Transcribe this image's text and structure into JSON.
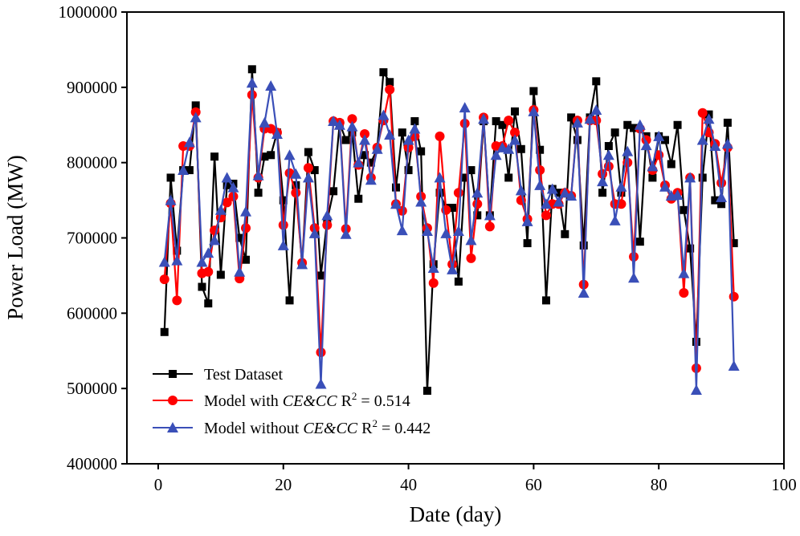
{
  "colors": {
    "test": "#000000",
    "with": "#ff0000",
    "without": "#3a4fb8"
  },
  "chart_data": {
    "type": "line",
    "xlabel": "Date (day)",
    "ylabel": "Power Load (MW)",
    "xlim": [
      -5,
      100
    ],
    "ylim": [
      400000,
      1000000
    ],
    "xticks": [
      0,
      20,
      40,
      60,
      80,
      100
    ],
    "xtick_labels": [
      "0",
      "20",
      "40",
      "60",
      "80",
      "100"
    ],
    "yticks": [
      400000,
      500000,
      600000,
      700000,
      800000,
      900000,
      1000000
    ],
    "ytick_labels": [
      "400000",
      "500000",
      "600000",
      "700000",
      "800000",
      "900000",
      "1000000"
    ],
    "legend_position": "bottom-left",
    "x": [
      1,
      2,
      3,
      4,
      5,
      6,
      7,
      8,
      9,
      10,
      11,
      12,
      13,
      14,
      15,
      16,
      17,
      18,
      19,
      20,
      21,
      22,
      23,
      24,
      25,
      26,
      27,
      28,
      29,
      30,
      31,
      32,
      33,
      34,
      35,
      36,
      37,
      38,
      39,
      40,
      41,
      42,
      43,
      44,
      45,
      46,
      47,
      48,
      49,
      50,
      51,
      52,
      53,
      54,
      55,
      56,
      57,
      58,
      59,
      60,
      61,
      62,
      63,
      64,
      65,
      66,
      67,
      68,
      69,
      70,
      71,
      72,
      73,
      74,
      75,
      76,
      77,
      78,
      79,
      80,
      81,
      82,
      83,
      84,
      85,
      86,
      87,
      88,
      89,
      90,
      91,
      92
    ],
    "series": [
      {
        "name": "Test Dataset",
        "marker": "square",
        "values": [
          575000,
          780000,
          683000,
          790000,
          790000,
          876000,
          635000,
          613000,
          808000,
          651000,
          770000,
          772000,
          700000,
          671000,
          924000,
          760000,
          808000,
          810000,
          840000,
          750000,
          617000,
          770000,
          665000,
          814000,
          790000,
          650000,
          723000,
          762000,
          852000,
          830000,
          840000,
          752000,
          810000,
          800000,
          818000,
          920000,
          907000,
          767000,
          840000,
          790000,
          855000,
          815000,
          497000,
          665000,
          760000,
          740000,
          740000,
          642000,
          780000,
          790000,
          730000,
          855000,
          730000,
          855000,
          850000,
          780000,
          868000,
          818000,
          693000,
          895000,
          817000,
          617000,
          765000,
          760000,
          705000,
          860000,
          830000,
          690000,
          860000,
          908000,
          760000,
          822000,
          840000,
          760000,
          850000,
          846000,
          695000,
          835000,
          780000,
          835000,
          830000,
          798000,
          850000,
          737000,
          686000,
          562000,
          780000,
          864000,
          750000,
          745000,
          853000,
          693000
        ]
      },
      {
        "name": "Model with CE&CC",
        "r2_text": "0.514",
        "marker": "circle",
        "values": [
          645000,
          746000,
          617000,
          822000,
          822000,
          867000,
          653000,
          655000,
          710000,
          727000,
          747000,
          755000,
          646000,
          713000,
          890000,
          780000,
          845000,
          845000,
          840000,
          717000,
          786000,
          760000,
          667000,
          793000,
          713000,
          548000,
          717000,
          855000,
          853000,
          712000,
          858000,
          797000,
          838000,
          780000,
          820000,
          856000,
          897000,
          745000,
          736000,
          820000,
          835000,
          755000,
          713000,
          640000,
          835000,
          737000,
          665000,
          760000,
          852000,
          673000,
          745000,
          860000,
          715000,
          822000,
          822000,
          856000,
          840000,
          750000,
          725000,
          870000,
          790000,
          730000,
          745000,
          745000,
          760000,
          756000,
          856000,
          638000,
          856000,
          856000,
          785000,
          795000,
          745000,
          745000,
          800000,
          675000,
          845000,
          830000,
          790000,
          810000,
          770000,
          752000,
          760000,
          627000,
          780000,
          527000,
          866000,
          840000,
          825000,
          773000,
          820000,
          622000
        ]
      },
      {
        "name": "Model without CE&CC",
        "r2_text": "0.442",
        "marker": "triangle",
        "values": [
          668000,
          750000,
          670000,
          790000,
          827000,
          860000,
          668000,
          680000,
          697000,
          737000,
          780000,
          767000,
          655000,
          735000,
          906000,
          783000,
          853000,
          902000,
          838000,
          690000,
          810000,
          785000,
          665000,
          780000,
          706000,
          506000,
          730000,
          855000,
          850000,
          705000,
          848000,
          800000,
          830000,
          777000,
          818000,
          863000,
          837000,
          745000,
          710000,
          830000,
          845000,
          748000,
          709000,
          660000,
          780000,
          706000,
          658000,
          709000,
          873000,
          697000,
          760000,
          858000,
          730000,
          810000,
          820000,
          818000,
          830000,
          763000,
          722000,
          868000,
          770000,
          745000,
          765000,
          748000,
          760000,
          756000,
          853000,
          627000,
          858000,
          870000,
          775000,
          810000,
          723000,
          768000,
          815000,
          647000,
          850000,
          823000,
          795000,
          835000,
          768000,
          756000,
          757000,
          653000,
          780000,
          498000,
          830000,
          858000,
          822000,
          754000,
          825000,
          530000
        ]
      }
    ]
  },
  "legend": {
    "test_label": "Test Dataset",
    "with_prefix": "Model with ",
    "with_italic": "CE&CC",
    "with_r2_label": " R",
    "with_r2_sup": "2",
    "with_r2_value": " = 0.514",
    "without_prefix": "Model without ",
    "without_italic": "CE&CC",
    "without_r2_label": " R",
    "without_r2_sup": "2",
    "without_r2_value": " = 0.442"
  }
}
